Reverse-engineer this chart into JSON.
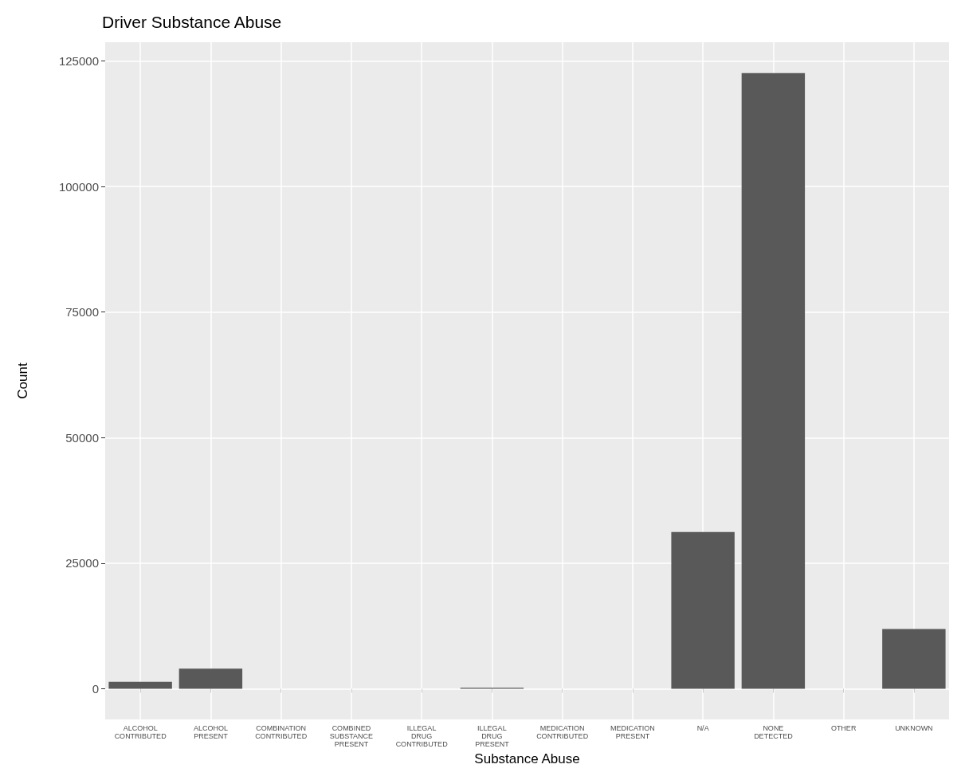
{
  "chart_data": {
    "type": "bar",
    "title": "Driver Substance Abuse",
    "xlabel": "Substance Abuse",
    "ylabel": "Count",
    "categories": [
      "ALCOHOL CONTRIBUTED",
      "ALCOHOL PRESENT",
      "COMBINATION CONTRIBUTED",
      "COMBINED SUBSTANCE PRESENT",
      "ILLEGAL DRUG CONTRIBUTED",
      "ILLEGAL DRUG PRESENT",
      "MEDICATION CONTRIBUTED",
      "MEDICATION PRESENT",
      "N/A",
      "NONE DETECTED",
      "OTHER",
      "UNKNOWN"
    ],
    "values": [
      1400,
      4000,
      0,
      0,
      0,
      200,
      0,
      0,
      31200,
      122600,
      0,
      11900
    ],
    "color": "#595959",
    "ylim": [
      -6130,
      128730
    ],
    "yticks": [
      0,
      25000,
      50000,
      75000,
      100000,
      125000
    ],
    "grid": true
  }
}
